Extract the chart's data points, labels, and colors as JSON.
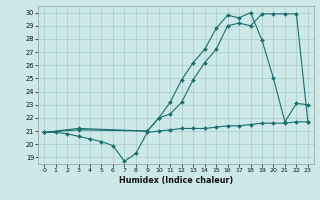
{
  "bg_color": "#cce8e8",
  "grid_color": "#aacccc",
  "line_color": "#1a6e6e",
  "xlabel": "Humidex (Indice chaleur)",
  "xlim": [
    -0.5,
    23.5
  ],
  "ylim": [
    18.5,
    30.5
  ],
  "yticks": [
    19,
    20,
    21,
    22,
    23,
    24,
    25,
    26,
    27,
    28,
    29,
    30
  ],
  "xticks": [
    0,
    1,
    2,
    3,
    4,
    5,
    6,
    7,
    8,
    9,
    10,
    11,
    12,
    13,
    14,
    15,
    16,
    17,
    18,
    19,
    20,
    21,
    22,
    23
  ],
  "line1_x": [
    0,
    1,
    2,
    3,
    4,
    5,
    6,
    7,
    8,
    9,
    10,
    11,
    12,
    13,
    14,
    15,
    16,
    17,
    18,
    19,
    20,
    21,
    22,
    23
  ],
  "line1_y": [
    20.9,
    20.9,
    20.8,
    20.6,
    20.4,
    20.2,
    19.9,
    18.7,
    19.3,
    20.9,
    21.0,
    21.1,
    21.2,
    21.2,
    21.2,
    21.3,
    21.4,
    21.4,
    21.5,
    21.6,
    21.6,
    21.6,
    21.7,
    21.7
  ],
  "line2_x": [
    0,
    3,
    9,
    10,
    11,
    12,
    13,
    14,
    15,
    16,
    17,
    18,
    19,
    20,
    21,
    22,
    23
  ],
  "line2_y": [
    20.9,
    21.1,
    21.0,
    22.0,
    22.3,
    23.2,
    24.9,
    26.2,
    27.2,
    29.0,
    29.2,
    29.0,
    29.9,
    29.9,
    29.9,
    29.9,
    21.7
  ],
  "line3_x": [
    0,
    3,
    9,
    10,
    11,
    12,
    13,
    14,
    15,
    16,
    17,
    18,
    19,
    20,
    21,
    22,
    23
  ],
  "line3_y": [
    20.9,
    21.2,
    21.0,
    22.0,
    23.2,
    24.9,
    26.2,
    27.2,
    28.8,
    29.8,
    29.6,
    30.0,
    27.9,
    25.0,
    21.7,
    23.1,
    23.0
  ]
}
